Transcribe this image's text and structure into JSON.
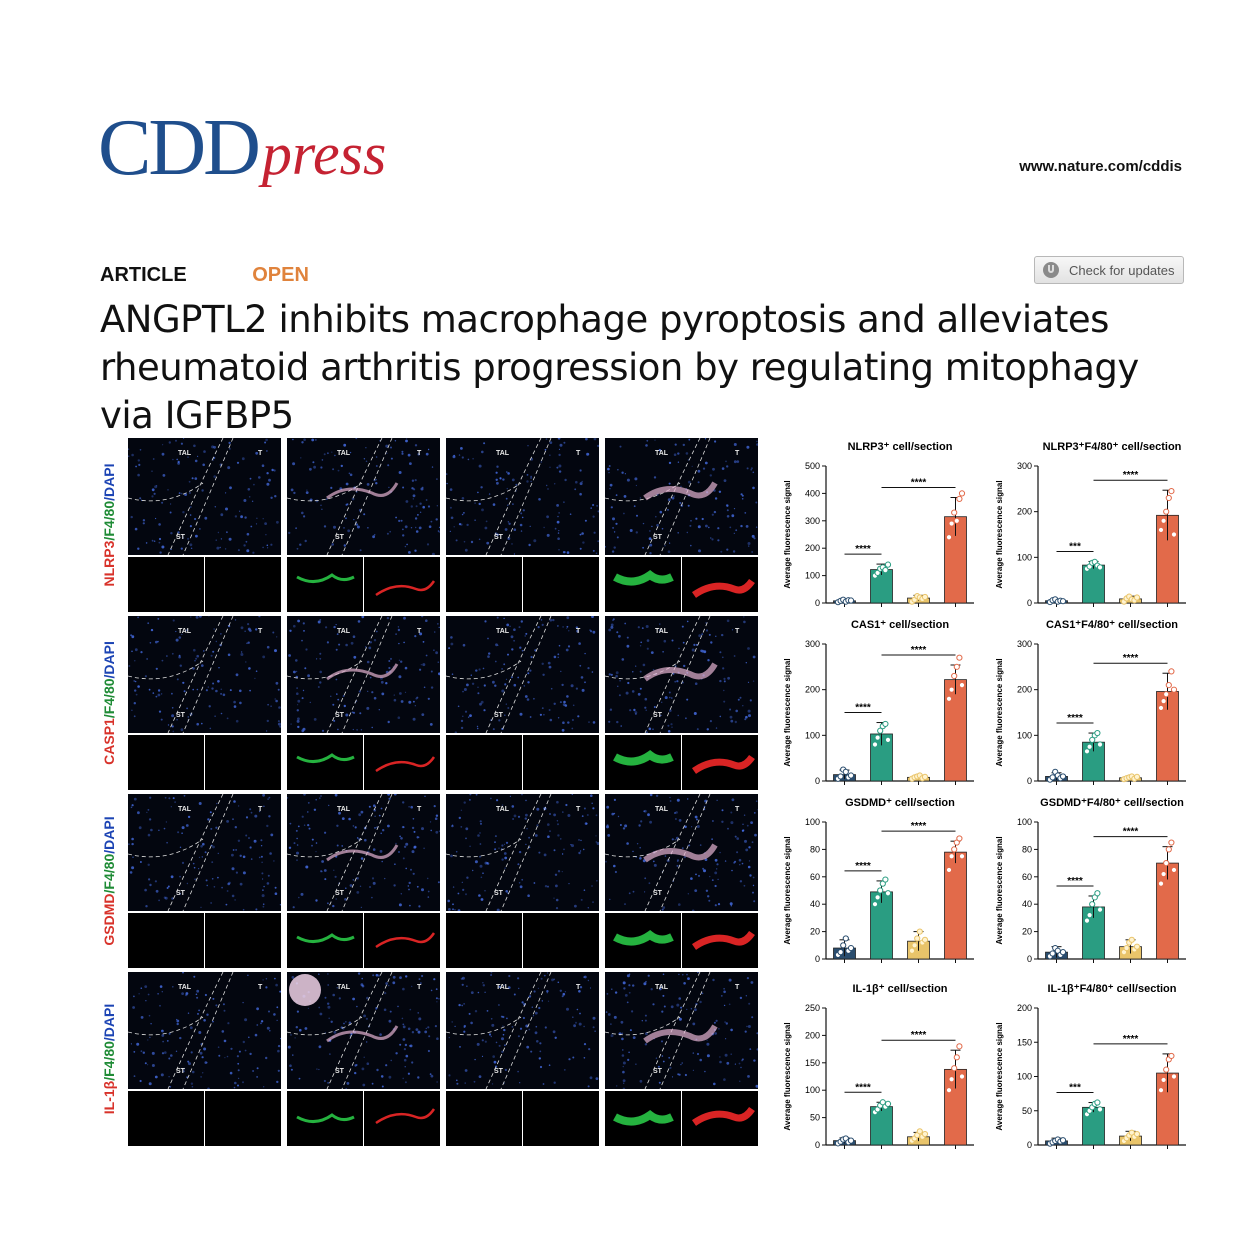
{
  "header": {
    "logo_main": "CDD",
    "logo_press": "press",
    "url": "www.nature.com/cddis",
    "article_tag": "ARTICLE",
    "open_tag": "OPEN",
    "check_updates": "Check for updates",
    "title": "ANGPTL2 inhibits macrophage pyroptosis and alleviates rheumatoid arthritis progression by regulating mitophagy via IGFBP5"
  },
  "figure": {
    "row_labels": [
      {
        "red": "NLRP3",
        "green": "F4/80",
        "blue": "DAPI"
      },
      {
        "red": "CASP1",
        "green": "F4/80",
        "blue": "DAPI"
      },
      {
        "red": "GSDMD",
        "green": "F4/80",
        "blue": "DAPI"
      },
      {
        "red": "IL-1β",
        "green": "F4/80",
        "blue": "DAPI"
      }
    ],
    "tissue_labels": {
      "tal": "TAL",
      "t": "T",
      "st": "ST"
    }
  },
  "chart_data": [
    {
      "type": "bar",
      "title": "NLRP3⁺ cell/section",
      "ylabel": "Average fluorescence signal",
      "ylim": [
        0,
        500
      ],
      "ticks": [
        0,
        100,
        200,
        300,
        400,
        500
      ],
      "values": [
        8,
        122,
        18,
        315
      ],
      "errors": [
        5,
        20,
        10,
        70
      ],
      "points": [
        [
          3,
          8,
          12,
          5,
          10,
          9
        ],
        [
          100,
          110,
          125,
          130,
          120,
          140
        ],
        [
          5,
          12,
          25,
          20,
          15,
          22
        ],
        [
          240,
          290,
          330,
          300,
          380,
          400
        ]
      ],
      "sig": [
        {
          "from": 0,
          "to": 1,
          "label": "****"
        },
        {
          "from": 1,
          "to": 3,
          "label": "****"
        }
      ]
    },
    {
      "type": "bar",
      "title": "NLRP3⁺F4/80⁺ cell/section",
      "ylabel": "Average fluorescence signal",
      "ylim": [
        0,
        300
      ],
      "ticks": [
        0,
        100,
        200,
        300
      ],
      "values": [
        5,
        83,
        9,
        192
      ],
      "errors": [
        3,
        8,
        6,
        55
      ],
      "points": [
        [
          2,
          6,
          8,
          3,
          5,
          4
        ],
        [
          75,
          80,
          88,
          90,
          82,
          78
        ],
        [
          3,
          10,
          14,
          8,
          6,
          12
        ],
        [
          160,
          180,
          200,
          230,
          245,
          150
        ]
      ],
      "sig": [
        {
          "from": 0,
          "to": 1,
          "label": "***"
        },
        {
          "from": 1,
          "to": 3,
          "label": "****"
        }
      ]
    },
    {
      "type": "bar",
      "title": "CAS1⁺ cell/section",
      "ylabel": "Average fluorescence signal",
      "ylim": [
        0,
        300
      ],
      "ticks": [
        0,
        100,
        200,
        300
      ],
      "values": [
        14,
        103,
        8,
        222
      ],
      "errors": [
        10,
        25,
        4,
        32
      ],
      "points": [
        [
          5,
          10,
          25,
          20,
          8,
          12
        ],
        [
          80,
          95,
          110,
          120,
          125,
          90
        ],
        [
          5,
          8,
          10,
          12,
          6,
          9
        ],
        [
          180,
          200,
          230,
          250,
          270,
          210
        ]
      ],
      "sig": [
        {
          "from": 0,
          "to": 1,
          "label": "****"
        },
        {
          "from": 1,
          "to": 3,
          "label": "****"
        }
      ]
    },
    {
      "type": "bar",
      "title": "CAS1⁺F4/80⁺ cell/section",
      "ylabel": "Average fluorescence signal",
      "ylim": [
        0,
        300
      ],
      "ticks": [
        0,
        100,
        200,
        300
      ],
      "values": [
        10,
        85,
        7,
        196
      ],
      "errors": [
        8,
        20,
        4,
        40
      ],
      "points": [
        [
          3,
          8,
          20,
          12,
          6,
          10
        ],
        [
          65,
          75,
          90,
          100,
          105,
          80
        ],
        [
          4,
          6,
          8,
          10,
          5,
          9
        ],
        [
          160,
          175,
          190,
          210,
          240,
          200
        ]
      ],
      "sig": [
        {
          "from": 0,
          "to": 1,
          "label": "****"
        },
        {
          "from": 1,
          "to": 3,
          "label": "****"
        }
      ]
    },
    {
      "type": "bar",
      "title": "GSDMD⁺ cell/section",
      "ylabel": "Average fluorescence signal",
      "ylim": [
        0,
        100
      ],
      "ticks": [
        0,
        20,
        40,
        60,
        80,
        100
      ],
      "values": [
        8,
        49,
        13,
        78
      ],
      "errors": [
        6,
        8,
        7,
        8
      ],
      "points": [
        [
          3,
          5,
          10,
          15,
          6,
          8
        ],
        [
          40,
          45,
          50,
          55,
          58,
          48
        ],
        [
          6,
          10,
          15,
          20,
          12,
          14
        ],
        [
          65,
          75,
          80,
          85,
          88,
          75
        ]
      ],
      "sig": [
        {
          "from": 0,
          "to": 1,
          "label": "****"
        },
        {
          "from": 1,
          "to": 3,
          "label": "****"
        }
      ]
    },
    {
      "type": "bar",
      "title": "GSDMD⁺F4/80⁺ cell/section",
      "ylabel": "Average fluorescence signal",
      "ylim": [
        0,
        100
      ],
      "ticks": [
        0,
        20,
        40,
        60,
        80,
        100
      ],
      "values": [
        5,
        38,
        9,
        70
      ],
      "errors": [
        4,
        8,
        5,
        12
      ],
      "points": [
        [
          2,
          4,
          8,
          6,
          3,
          5
        ],
        [
          28,
          32,
          40,
          45,
          48,
          36
        ],
        [
          5,
          8,
          12,
          14,
          7,
          9
        ],
        [
          55,
          62,
          70,
          80,
          85,
          65
        ]
      ],
      "sig": [
        {
          "from": 0,
          "to": 1,
          "label": "****"
        },
        {
          "from": 1,
          "to": 3,
          "label": "****"
        }
      ]
    },
    {
      "type": "bar",
      "title": "IL-1β⁺ cell/section",
      "ylabel": "Average fluorescence signal",
      "ylim": [
        0,
        250
      ],
      "ticks": [
        0,
        50,
        100,
        150,
        200,
        250
      ],
      "values": [
        8,
        70,
        15,
        138
      ],
      "errors": [
        5,
        8,
        8,
        35
      ],
      "points": [
        [
          3,
          6,
          10,
          12,
          5,
          8
        ],
        [
          60,
          65,
          72,
          78,
          70,
          75
        ],
        [
          8,
          12,
          18,
          25,
          15,
          20
        ],
        [
          100,
          120,
          140,
          160,
          180,
          125
        ]
      ],
      "sig": [
        {
          "from": 0,
          "to": 1,
          "label": "****"
        },
        {
          "from": 1,
          "to": 3,
          "label": "****"
        }
      ]
    },
    {
      "type": "bar",
      "title": "IL-1β⁺F4/80⁺ cell/section",
      "ylabel": "Average fluorescence signal",
      "ylim": [
        0,
        200
      ],
      "ticks": [
        0,
        50,
        100,
        150,
        200
      ],
      "values": [
        6,
        55,
        13,
        105
      ],
      "errors": [
        4,
        7,
        7,
        28
      ],
      "points": [
        [
          2,
          4,
          6,
          8,
          5,
          7
        ],
        [
          45,
          50,
          55,
          60,
          62,
          52
        ],
        [
          6,
          10,
          14,
          18,
          12,
          16
        ],
        [
          80,
          95,
          110,
          125,
          130,
          100
        ]
      ],
      "sig": [
        {
          "from": 0,
          "to": 1,
          "label": "***"
        },
        {
          "from": 1,
          "to": 3,
          "label": "****"
        }
      ]
    }
  ],
  "colors": {
    "group1": "#2a4d6e",
    "group2": "#2a9d82",
    "group3": "#e9c46a",
    "group4": "#e26a4a"
  }
}
